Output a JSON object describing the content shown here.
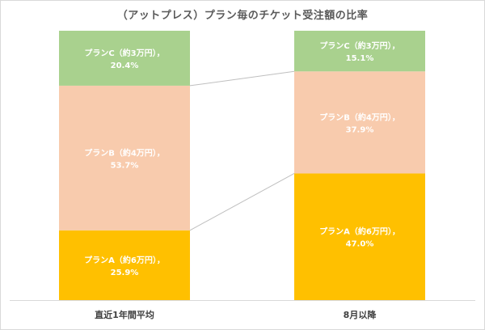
{
  "chart_data": {
    "type": "bar",
    "stacked": true,
    "normalized": true,
    "title": "（アットプレス）プラン毎のチケット受注額の比率",
    "categories": [
      "直近1年間平均",
      "8月以降"
    ],
    "series": [
      {
        "name": "プランA（約6万円）",
        "values": [
          25.9,
          47.0
        ],
        "labels": [
          "25.9%",
          "47.0%"
        ],
        "color": "#ffc000"
      },
      {
        "name": "プランB（約4万円）",
        "values": [
          53.7,
          37.9
        ],
        "labels": [
          "53.7%",
          "37.9%"
        ],
        "color": "#f8cbad"
      },
      {
        "name": "プランC（約3万円）",
        "values": [
          20.4,
          15.1
        ],
        "labels": [
          "20.4%",
          "15.1%"
        ],
        "color": "#a9d18e"
      }
    ],
    "ylim": [
      0,
      100
    ],
    "series_lines": true,
    "legend": "none"
  }
}
